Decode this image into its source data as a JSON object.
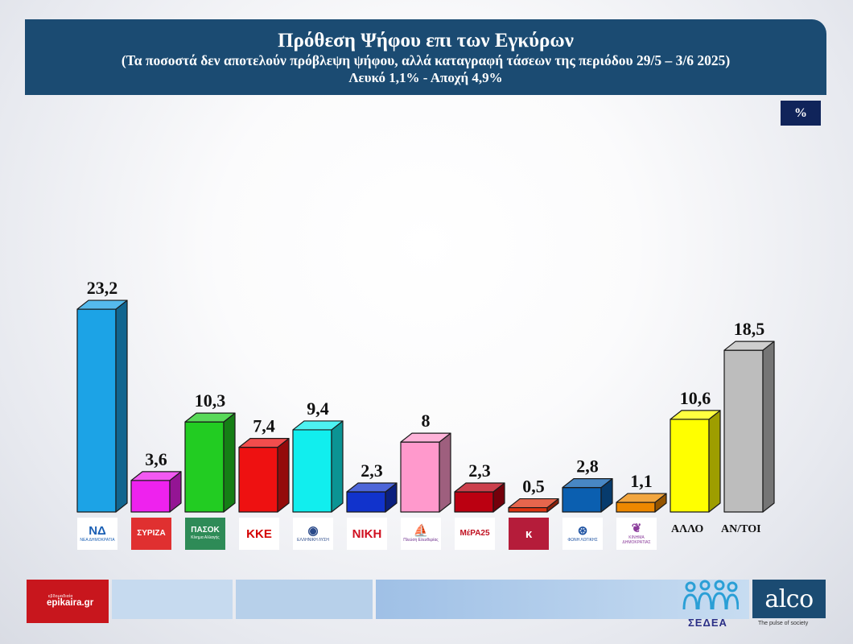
{
  "header": {
    "title": "Πρόθεση Ψήφου επι των Εγκύρων",
    "subtitle": "(Τα ποσοστά δεν αποτελούν πρόβλεψη ψήφου, αλλά καταγραφή τάσεων της περιόδου  29/5 – 3/6 2025)",
    "note": "Λευκό 1,1% - Αποχή 4,9%"
  },
  "unit_label": "%",
  "chart_data": {
    "type": "bar",
    "title": "Πρόθεση Ψήφου επι των Εγκύρων",
    "unit": "%",
    "categories": [
      "ΝΔ",
      "ΣΥΡΙΖΑ",
      "ΠΑΣΟΚ",
      "ΚΚΕ",
      "ΕΛΛΗΝΙΚΗ ΛΥΣΗ",
      "ΝΙΚΗ",
      "Πλεύση Ελευθερίας",
      "ΜέΡΑ25",
      "Κίνημα",
      "ΦΩΝΗ ΛΟΓΙΚΗΣ",
      "ΚΙΝΗΜΑ ΔΗΜΟΚΡΑΤΙΑΣ",
      "ΑΛΛΟ",
      "ΑΝ/ΤΟΙ"
    ],
    "values": [
      23.2,
      3.6,
      10.3,
      7.4,
      9.4,
      2.3,
      8,
      2.3,
      0.5,
      2.8,
      1.1,
      10.6,
      18.5
    ],
    "value_labels": [
      "23,2",
      "3,6",
      "10,3",
      "7,4",
      "9,4",
      "2,3",
      "8",
      "2,3",
      "0,5",
      "2,8",
      "1,1",
      "10,6",
      "18,5"
    ],
    "colors": [
      "#1ca3e6",
      "#ee22ee",
      "#22cc22",
      "#ee1111",
      "#11eeee",
      "#1133cc",
      "#ff99cc",
      "#bb0011",
      "#dd3311",
      "#0b5fb0",
      "#ee8800",
      "#ffff00",
      "#bdbdbd"
    ],
    "ylim": [
      0,
      25
    ],
    "grid": false,
    "legend": "none"
  },
  "party_logos": [
    {
      "icon": "nd-logo",
      "abbr": "ΝΔ",
      "full": "ΝΕΑ ΔΗΜΟΚΡΑΤΙΑ",
      "color": "#1a5fb4",
      "bg": "#ffffff"
    },
    {
      "icon": "syriza-logo",
      "abbr": "ΣΥΡΙΖΑ",
      "full": "",
      "color": "#ffffff",
      "bg": "#e03030"
    },
    {
      "icon": "pasok-logo",
      "abbr": "ΠΑΣΟΚ",
      "full": "Κίνημα Αλλαγής",
      "color": "#ffffff",
      "bg": "#2e8b57"
    },
    {
      "icon": "kke-logo",
      "abbr": "ΚΚΕ",
      "full": "",
      "color": "#d40000",
      "bg": "#ffffff"
    },
    {
      "icon": "elliniki-lysi-logo",
      "abbr": "◉",
      "full": "ΕΛΛΗΝΙΚΗ ΛΥΣΗ",
      "color": "#2a4a8a",
      "bg": "#ffffff"
    },
    {
      "icon": "niki-logo",
      "abbr": "ΝΙΚΗ",
      "full": "",
      "color": "#d01020",
      "bg": "#ffffff"
    },
    {
      "icon": "plefsi-logo",
      "abbr": "⛵",
      "full": "Πλεύση Ελευθερίας",
      "color": "#6a2a8a",
      "bg": "#ffffff"
    },
    {
      "icon": "mera25-logo",
      "abbr": "ΜέΡΑ25",
      "full": "",
      "color": "#c01020",
      "bg": "#ffffff"
    },
    {
      "icon": "kinima-logo",
      "abbr": "κ",
      "full": "",
      "color": "#ffffff",
      "bg": "#b51c3a"
    },
    {
      "icon": "foni-logikis-logo",
      "abbr": "⊛",
      "full": "ΦΩΝΗ ΛΟΓΙΚΗΣ",
      "color": "#1a4fa0",
      "bg": "#ffffff"
    },
    {
      "icon": "kinima-dimokratias-logo",
      "abbr": "❦",
      "full": "ΚΙΝΗΜΑ ΔΗΜΟΚΡΑΤΙΑΣ",
      "color": "#8a3a9a",
      "bg": "#ffffff"
    }
  ],
  "category_text": {
    "allo": "ΑΛΛΟ",
    "anatoi": "ΑΝ/ΤΟΙ"
  },
  "footer": {
    "epikaira_small": "εβδομαδιαία",
    "epikaira_name": "epikaira.gr",
    "sedea": "ΣΕΔΕΑ",
    "alco": "alco",
    "alco_tagline": "The pulse of society"
  }
}
